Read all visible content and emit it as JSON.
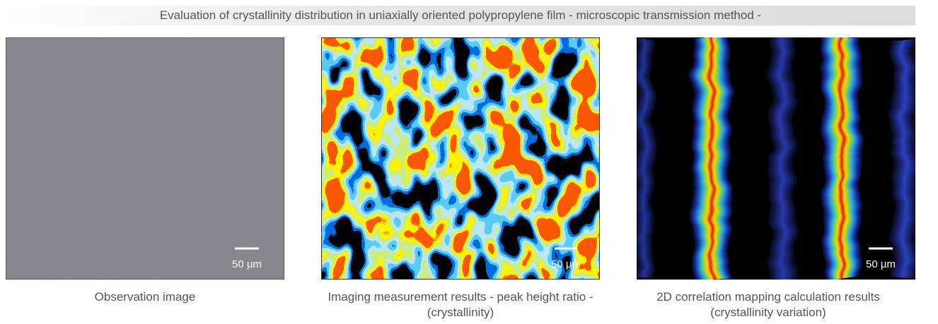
{
  "header": {
    "title": "Evaluation of crystallinity distribution in uniaxially oriented polypropylene film - microscopic transmission method -"
  },
  "panels": [
    {
      "caption": [
        "Observation image"
      ],
      "scale_bar": "50 µm"
    },
    {
      "caption": [
        "Imaging measurement results - peak height ratio -",
        "(crystallinity)"
      ],
      "scale_bar": "50 µm"
    },
    {
      "caption": [
        "2D correlation mapping calculation results",
        "(crystallinity variation)"
      ],
      "scale_bar": "50 µm"
    }
  ]
}
